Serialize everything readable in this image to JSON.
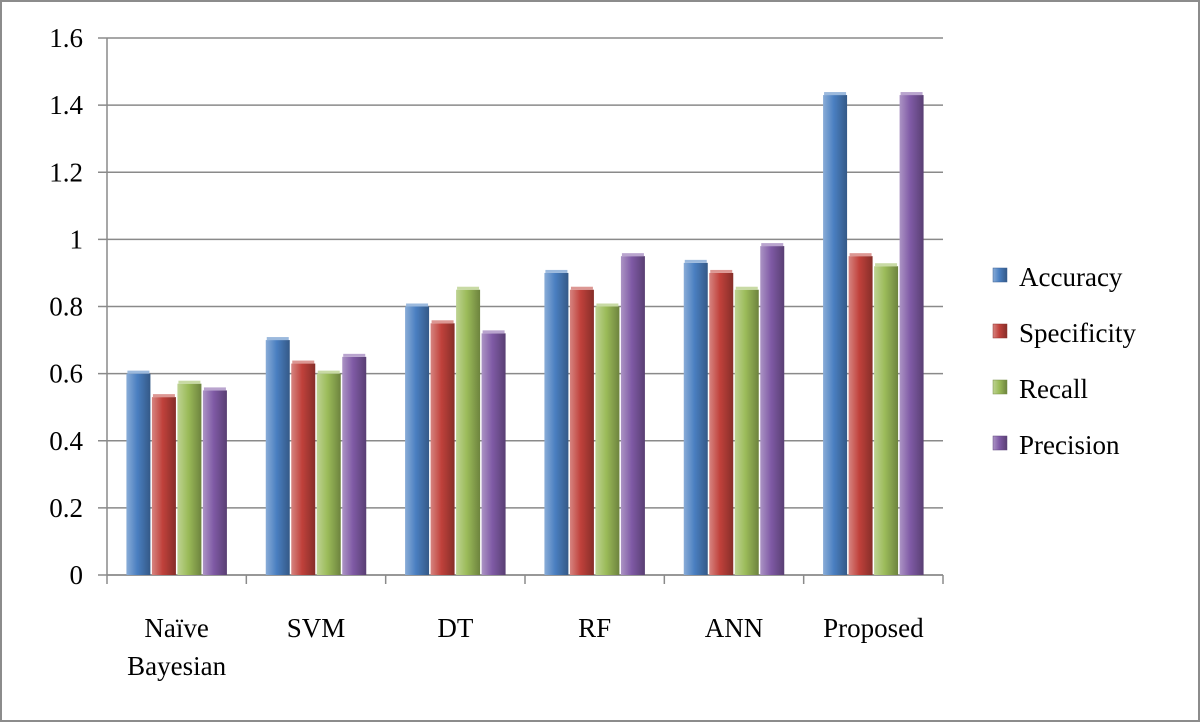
{
  "chart_data": {
    "type": "bar",
    "title": "",
    "xlabel": "",
    "ylabel": "",
    "ylim": [
      0,
      1.6
    ],
    "yticks": [
      "0",
      "0.2",
      "0.4",
      "0.6",
      "0.8",
      "1",
      "1.2",
      "1.4",
      "1.6"
    ],
    "ytick_values": [
      0,
      0.2,
      0.4,
      0.6,
      0.8,
      1,
      1.2,
      1.4,
      1.6
    ],
    "grid": true,
    "legend_position": "right",
    "categories": [
      [
        "Naïve",
        "Bayesian"
      ],
      [
        "SVM"
      ],
      [
        "DT"
      ],
      [
        "RF"
      ],
      [
        "ANN"
      ],
      [
        "Proposed"
      ]
    ],
    "series": [
      {
        "name": "Accuracy",
        "color": "#4a7fc1",
        "values": [
          0.6,
          0.7,
          0.8,
          0.9,
          0.93,
          1.43
        ]
      },
      {
        "name": "Specificity",
        "color": "#c0413b",
        "values": [
          0.53,
          0.63,
          0.75,
          0.85,
          0.9,
          0.95
        ]
      },
      {
        "name": "Recall",
        "color": "#9bbb59",
        "values": [
          0.57,
          0.6,
          0.85,
          0.8,
          0.85,
          0.92
        ]
      },
      {
        "name": "Precision",
        "color": "#7f5aa5",
        "values": [
          0.55,
          0.65,
          0.72,
          0.95,
          0.98,
          1.43
        ]
      }
    ]
  }
}
